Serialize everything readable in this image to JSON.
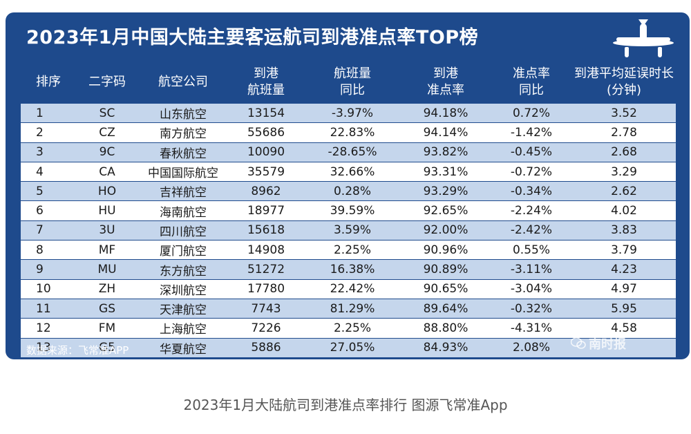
{
  "title": "2023年1月中国大陆主要客运航司到港准点率TOP榜",
  "headers": [
    [
      "排序"
    ],
    [
      "二字码"
    ],
    [
      "航空公司"
    ],
    [
      "到港",
      "航班量"
    ],
    [
      "航班量",
      "同比"
    ],
    [
      "到港",
      "准点率"
    ],
    [
      "准点率",
      "同比"
    ],
    [
      "到港平均延误时长",
      "(分钟)"
    ]
  ],
  "rows": [
    [
      "1",
      "SC",
      "山东航空",
      "13154",
      "-3.97%",
      "94.18%",
      "0.72%",
      "3.52"
    ],
    [
      "2",
      "CZ",
      "南方航空",
      "55686",
      "22.83%",
      "94.14%",
      "-1.42%",
      "2.78"
    ],
    [
      "3",
      "9C",
      "春秋航空",
      "10090",
      "-28.65%",
      "93.82%",
      "-0.45%",
      "2.68"
    ],
    [
      "4",
      "CA",
      "中国国际航空",
      "35579",
      "32.66%",
      "93.31%",
      "-0.72%",
      "3.29"
    ],
    [
      "5",
      "HO",
      "吉祥航空",
      "8962",
      "0.28%",
      "93.29%",
      "-0.34%",
      "2.62"
    ],
    [
      "6",
      "HU",
      "海南航空",
      "18977",
      "39.59%",
      "92.65%",
      "-2.24%",
      "4.02"
    ],
    [
      "7",
      "3U",
      "四川航空",
      "15618",
      "3.59%",
      "92.00%",
      "-2.42%",
      "3.83"
    ],
    [
      "8",
      "MF",
      "厦门航空",
      "14908",
      "2.25%",
      "90.96%",
      "0.55%",
      "3.79"
    ],
    [
      "9",
      "MU",
      "东方航空",
      "51272",
      "16.38%",
      "90.89%",
      "-3.11%",
      "4.23"
    ],
    [
      "10",
      "ZH",
      "深圳航空",
      "17780",
      "22.42%",
      "90.65%",
      "-3.04%",
      "4.97"
    ],
    [
      "11",
      "GS",
      "天津航空",
      "7743",
      "81.29%",
      "89.64%",
      "-0.32%",
      "5.95"
    ],
    [
      "12",
      "FM",
      "上海航空",
      "7226",
      "2.25%",
      "88.80%",
      "-4.31%",
      "4.58"
    ],
    [
      "13",
      "G5",
      "华夏航空",
      "5886",
      "27.05%",
      "84.93%",
      "2.08%",
      ""
    ]
  ],
  "source": "数据来源：飞常准APP",
  "watermark": "南时报",
  "caption": "2023年1月大陆航司到港准点率排行 图源飞常准App",
  "colors": {
    "panel": "#1e4a8c",
    "stripe": "#c5d6ec",
    "white": "#ffffff"
  },
  "icons": [
    "airplane-icon",
    "wechat-icon"
  ]
}
